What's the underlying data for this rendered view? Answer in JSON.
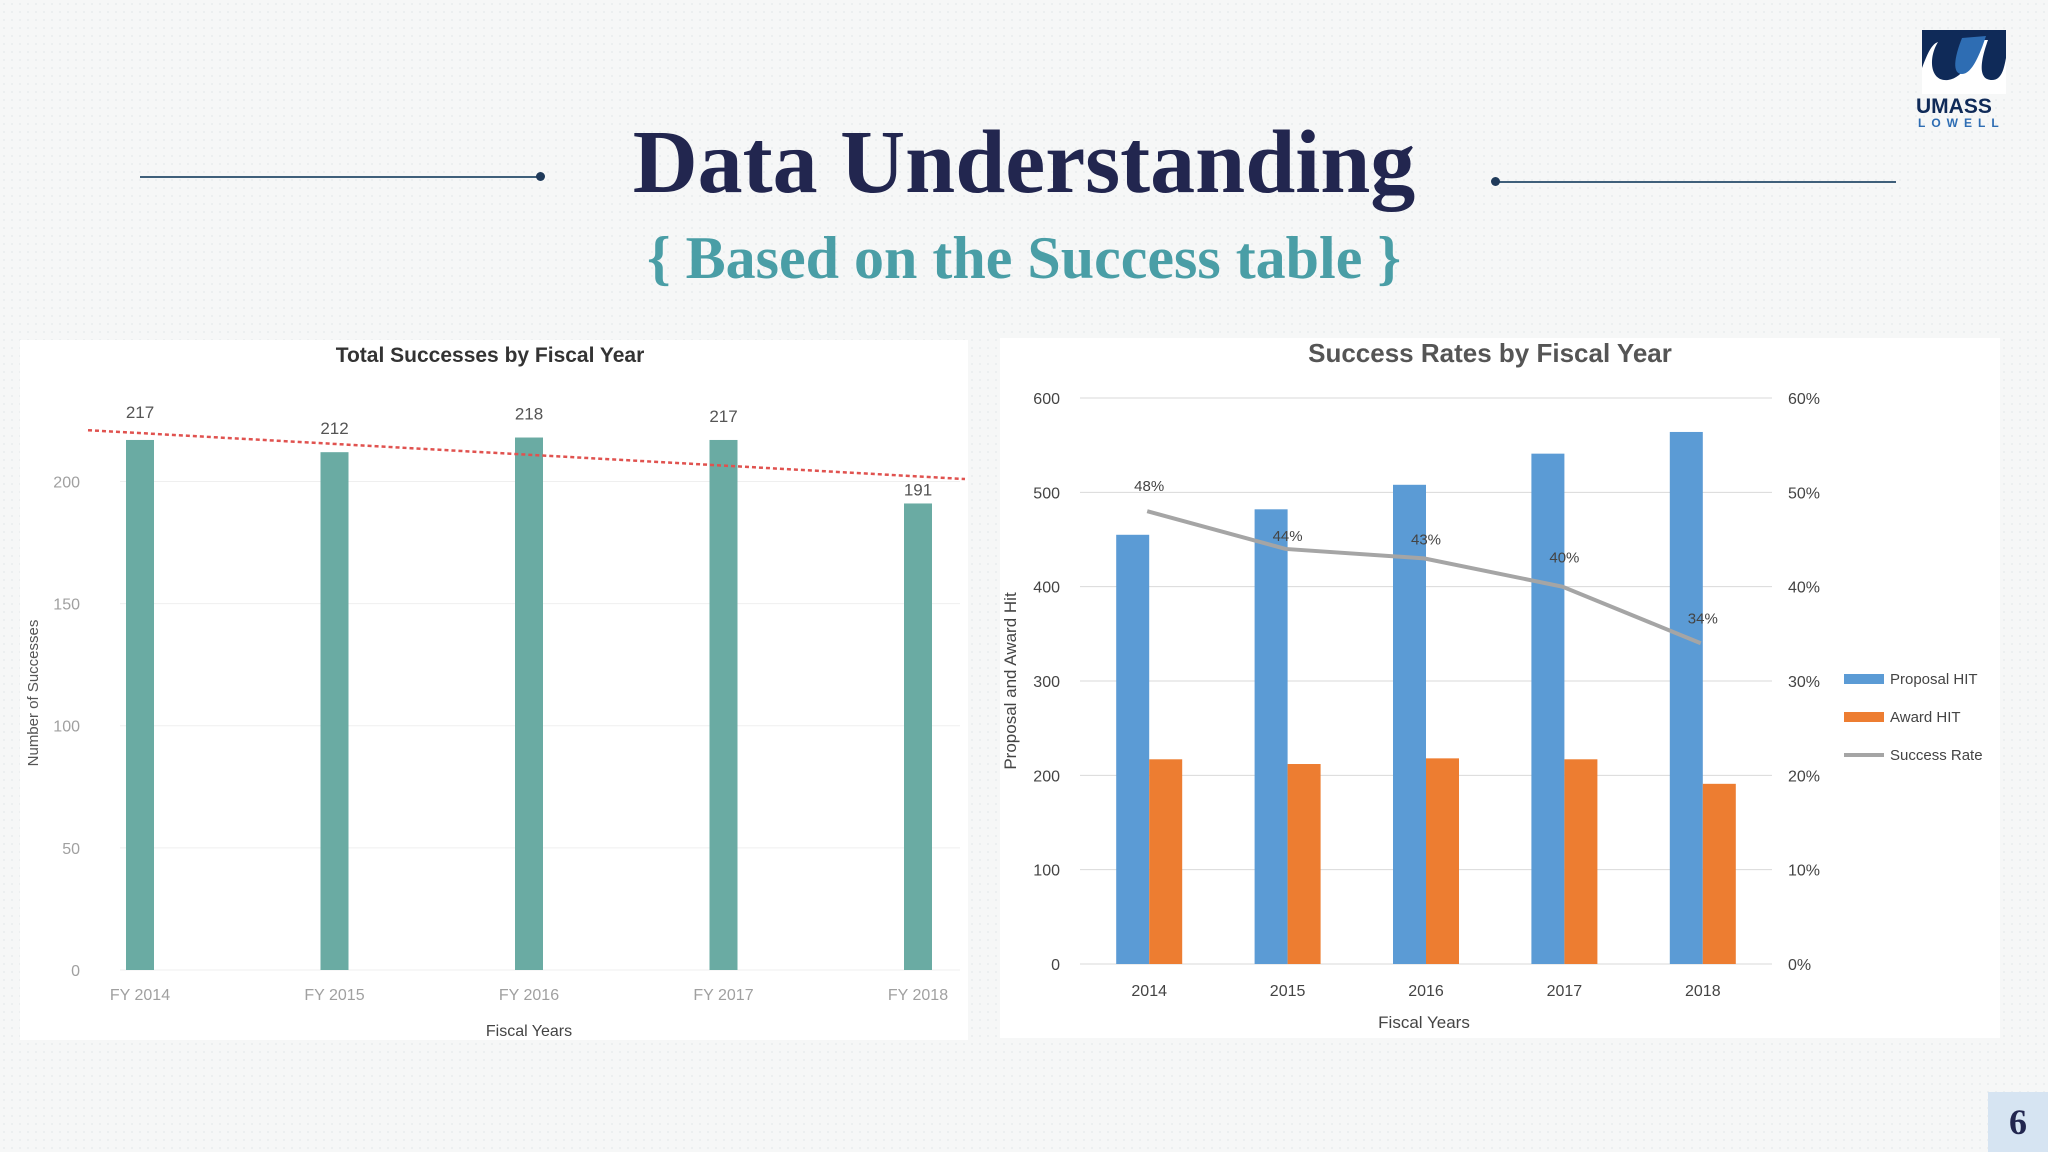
{
  "slide": {
    "title": "Data Understanding",
    "subtitle": "{ Based on the Success table }",
    "page_number": "6",
    "logo_text": "UMASS",
    "logo_subtext": "LOWELL"
  },
  "colors": {
    "title": "#22264f",
    "subtitle": "#4a9ea6",
    "teal_bar": "#6aaba3",
    "trend": "#e0524f",
    "proposal": "#5b9bd5",
    "award": "#ed7d31",
    "rate": "#a5a5a5"
  },
  "chart_data": [
    {
      "type": "bar",
      "title": "Total Successes by Fiscal Year",
      "xlabel": "Fiscal Years",
      "ylabel": "Number of Successes",
      "categories": [
        "FY 2014",
        "FY 2015",
        "FY 2016",
        "FY 2017",
        "FY 2018"
      ],
      "values": [
        217,
        212,
        218,
        217,
        191
      ],
      "ylim": [
        0,
        235
      ],
      "yticks": [
        0,
        50,
        100,
        150,
        200
      ],
      "trendline": {
        "style": "dotted",
        "color": "#e0524f",
        "start": 221,
        "end": 201
      },
      "grid": true
    },
    {
      "type": "bar",
      "title": "Success Rates by Fiscal Year",
      "xlabel": "Fiscal Years",
      "ylabel": "Proposal and  Award Hit",
      "categories": [
        "2014",
        "2015",
        "2016",
        "2017",
        "2018"
      ],
      "series": [
        {
          "name": "Proposal HIT",
          "type": "bar",
          "values": [
            455,
            482,
            508,
            541,
            564
          ]
        },
        {
          "name": "Award HIT",
          "type": "bar",
          "values": [
            217,
            212,
            218,
            217,
            191
          ]
        },
        {
          "name": "Success Rate",
          "type": "line",
          "axis": "secondary",
          "values": [
            48,
            44,
            43,
            40,
            34
          ],
          "labels": [
            "48%",
            "44%",
            "43%",
            "40%",
            "34%"
          ]
        }
      ],
      "ylim": [
        0,
        600
      ],
      "yticks": [
        0,
        100,
        200,
        300,
        400,
        500,
        600
      ],
      "y2lim": [
        0,
        60
      ],
      "y2ticks": [
        "0%",
        "10%",
        "20%",
        "30%",
        "40%",
        "50%",
        "60%"
      ],
      "legend": "right",
      "grid": true
    }
  ]
}
